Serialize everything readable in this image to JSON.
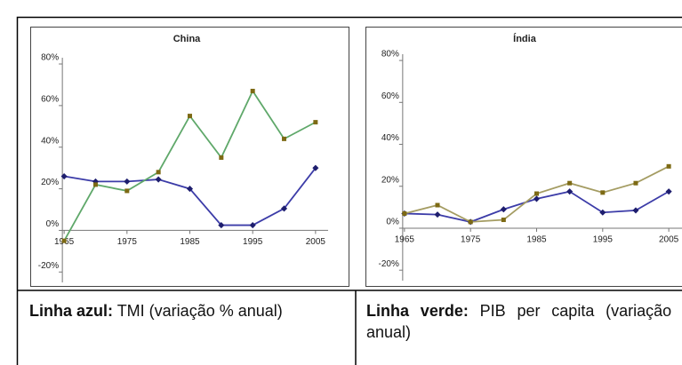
{
  "chart_data": [
    {
      "type": "line",
      "title": "China",
      "x": [
        1965,
        1970,
        1975,
        1980,
        1985,
        1990,
        1995,
        2000,
        2005
      ],
      "xlim": [
        1963,
        2007
      ],
      "xticks": [
        1965,
        1975,
        1985,
        1995,
        2005
      ],
      "ylim": [
        -25,
        83
      ],
      "yticks": [
        {
          "value": -20,
          "label": "-20%"
        },
        {
          "value": 0,
          "label": "0%"
        },
        {
          "value": 20,
          "label": "20%"
        },
        {
          "value": 40,
          "label": "40%"
        },
        {
          "value": 60,
          "label": "60%"
        },
        {
          "value": 80,
          "label": "80%"
        }
      ],
      "series": [
        {
          "color": "#3c3ca8",
          "marker": "#1e1e6e",
          "values": [
            26,
            23.5,
            23.5,
            24.5,
            20,
            2.5,
            2.5,
            10.5,
            30
          ]
        },
        {
          "color": "#5fa86a",
          "marker": "#7d6a14",
          "values": [
            -5,
            22,
            19,
            28,
            55,
            35,
            67,
            44,
            52
          ]
        }
      ]
    },
    {
      "type": "line",
      "title": "Índia",
      "x": [
        1965,
        1970,
        1975,
        1980,
        1985,
        1990,
        1995,
        2000,
        2005
      ],
      "xlim": [
        1963,
        2007
      ],
      "xticks": [
        1965,
        1975,
        1985,
        1995,
        2005
      ],
      "ylim": [
        -25,
        83
      ],
      "yticks": [
        {
          "value": -20,
          "label": "-20%"
        },
        {
          "value": 0,
          "label": "0%"
        },
        {
          "value": 20,
          "label": "20%"
        },
        {
          "value": 40,
          "label": "40%"
        },
        {
          "value": 60,
          "label": "60%"
        },
        {
          "value": 80,
          "label": "80%"
        }
      ],
      "series": [
        {
          "color": "#3c3ca8",
          "marker": "#1e1e6e",
          "values": [
            7,
            6.5,
            3,
            9,
            14,
            17.5,
            7.5,
            8.5,
            17.5
          ]
        },
        {
          "color": "#a49c62",
          "marker": "#7d6a14",
          "values": [
            7,
            11,
            3,
            4,
            16.5,
            21.5,
            17,
            21.5,
            29.5
          ]
        }
      ]
    }
  ],
  "table": {
    "cells": [
      {
        "label": "Linha azul:",
        "text": "TMI (variação % anual)"
      },
      {
        "label": "Linha verde:",
        "text": "PIB per capita (variação % anual)"
      }
    ]
  }
}
